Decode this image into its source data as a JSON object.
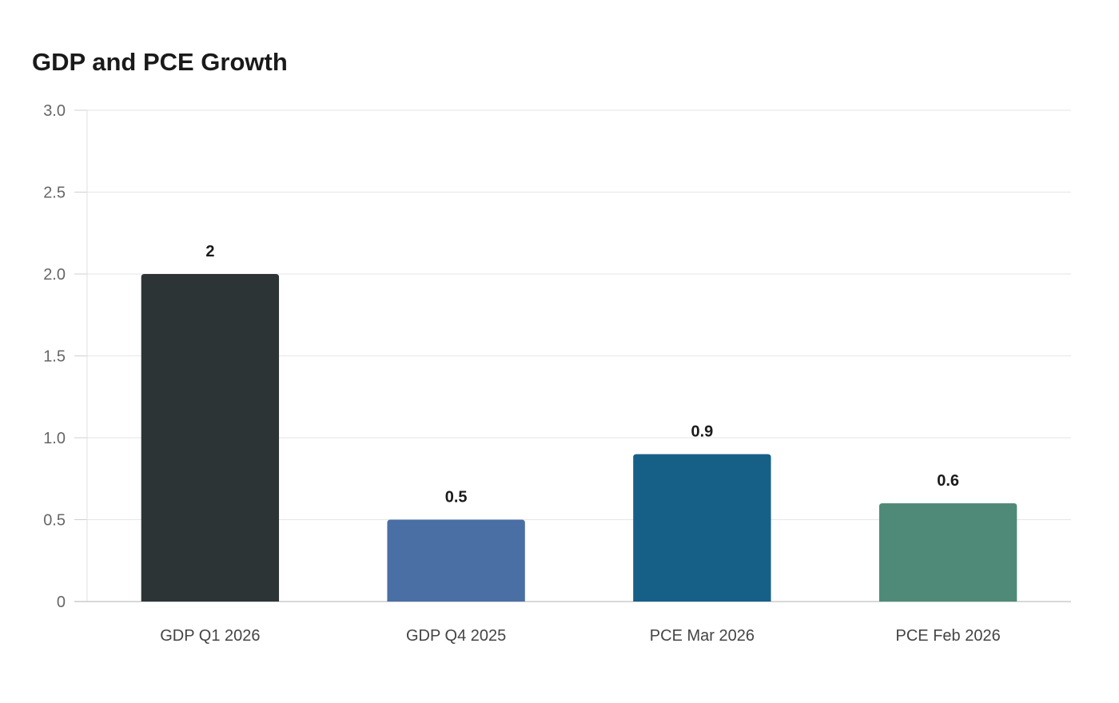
{
  "chart_data": {
    "type": "bar",
    "title": "GDP and PCE Growth",
    "xlabel": "",
    "ylabel": "",
    "categories": [
      "GDP Q1 2026",
      "GDP Q4 2025",
      "PCE Mar 2026",
      "PCE Feb 2026"
    ],
    "values": [
      2,
      0.5,
      0.9,
      0.6
    ],
    "data_labels": [
      "2",
      "0.5",
      "0.9",
      "0.6"
    ],
    "colors": [
      "#2d3436",
      "#4a6fa5",
      "#166088",
      "#4f8a78"
    ],
    "ylim": [
      0,
      3
    ],
    "yticks": [
      0,
      0.5,
      1,
      1.5,
      2,
      2.5,
      3
    ],
    "ytick_labels": [
      "0",
      "0.5",
      "1.0",
      "1.5",
      "2.0",
      "2.5",
      "3.0"
    ],
    "grid": true,
    "legend": "none"
  }
}
